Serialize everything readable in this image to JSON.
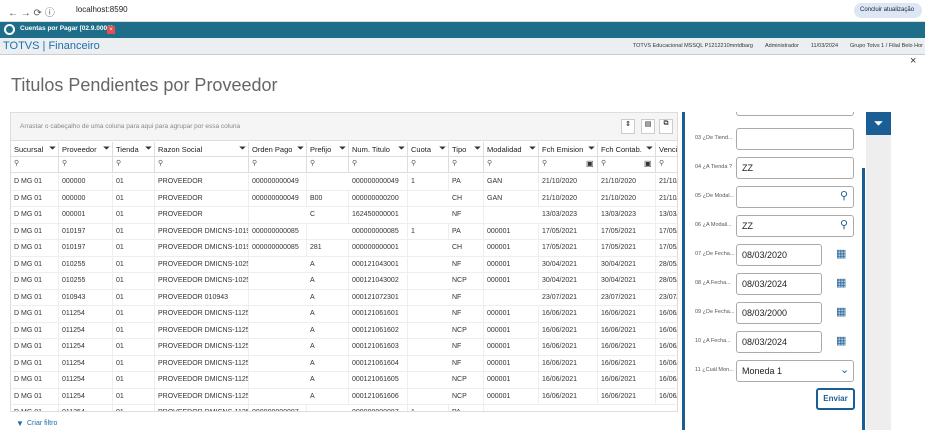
{
  "browser": {
    "url": "localhost:8590",
    "update_button": "Concluir atualização"
  },
  "tab": {
    "title": "Cuentas por Pagar [02.9.0006]"
  },
  "app": {
    "brand": "TOTVS | Financeiro",
    "status": [
      "TOTVS Educacional MSSQL P1212210mntdbarg",
      "Administrador",
      "11/03/2024",
      "Grupo Totvs 1 / Filial Belo Hor"
    ]
  },
  "page": {
    "title": "Titulos Pendientes por Proveedor"
  },
  "grid": {
    "group_hint": "Arrastar o cabeçalho de uma coluna para aqui para agrupar por essa coluna",
    "columns": [
      "Sucursal",
      "Proveedor",
      "Tienda",
      "Razon Social",
      "Orden Pago",
      "Prefijo",
      "Num. Titulo",
      "Cuota",
      "Tipo",
      "Modalidad",
      "Fch Emision",
      "Fch Contab.",
      "Vencin"
    ],
    "rows": [
      [
        "D MG 01",
        "000000",
        "01",
        "PROVEEDOR",
        "000000000049",
        null,
        "000000000049",
        "1",
        "PA",
        "GAN",
        "21/10/2020",
        "21/10/2020",
        "21/10/"
      ],
      [
        "D MG 01",
        "000000",
        "01",
        "PROVEEDOR",
        "000000000049",
        "B00",
        "000000000200",
        null,
        "CH",
        "GAN",
        "21/10/2020",
        "21/10/2020",
        "21/10/"
      ],
      [
        "D MG 01",
        "000001",
        "01",
        "PROVEEDOR",
        null,
        "C",
        "162450000001",
        null,
        "NF",
        null,
        "13/03/2023",
        "13/03/2023",
        "13/03/"
      ],
      [
        "D MG 01",
        "010197",
        "01",
        "PROVEEDOR DMICNS-10197",
        "000000000085",
        null,
        "000000000085",
        "1",
        "PA",
        "000001",
        "17/05/2021",
        "17/05/2021",
        "17/05/"
      ],
      [
        "D MG 01",
        "010197",
        "01",
        "PROVEEDOR DMICNS-10197",
        "000000000085",
        "281",
        "000000000001",
        null,
        "CH",
        "000001",
        "17/05/2021",
        "17/05/2021",
        "17/05/"
      ],
      [
        "D MG 01",
        "010255",
        "01",
        "PROVEEDOR DMICNS-10255",
        null,
        "A",
        "000121043001",
        null,
        "NF",
        "000001",
        "30/04/2021",
        "30/04/2021",
        "28/05/"
      ],
      [
        "D MG 01",
        "010255",
        "01",
        "PROVEEDOR DMICNS-10255",
        null,
        "A",
        "000121043002",
        null,
        "NCP",
        "000001",
        "30/04/2021",
        "30/04/2021",
        "28/05/"
      ],
      [
        "D MG 01",
        "010943",
        "01",
        "PROVEEDOR 010943",
        null,
        "A",
        "000121072301",
        null,
        "NF",
        null,
        "23/07/2021",
        "23/07/2021",
        "23/07/"
      ],
      [
        "D MG 01",
        "011254",
        "01",
        "PROVEEDOR DMICNS-11254",
        null,
        "A",
        "000121061601",
        null,
        "NF",
        "000001",
        "16/06/2021",
        "16/06/2021",
        "16/06/"
      ],
      [
        "D MG 01",
        "011254",
        "01",
        "PROVEEDOR DMICNS-11254",
        null,
        "A",
        "000121061602",
        null,
        "NCP",
        "000001",
        "16/06/2021",
        "16/06/2021",
        "16/06/"
      ],
      [
        "D MG 01",
        "011254",
        "01",
        "PROVEEDOR DMICNS-11254",
        null,
        "A",
        "000121061603",
        null,
        "NF",
        "000001",
        "16/06/2021",
        "16/06/2021",
        "16/06/"
      ],
      [
        "D MG 01",
        "011254",
        "01",
        "PROVEEDOR DMICNS-11254",
        null,
        "A",
        "000121061604",
        null,
        "NF",
        "000001",
        "16/06/2021",
        "16/06/2021",
        "16/06/"
      ],
      [
        "D MG 01",
        "011254",
        "01",
        "PROVEEDOR DMICNS-11254",
        null,
        "A",
        "000121061605",
        null,
        "NCP",
        "000001",
        "16/06/2021",
        "16/06/2021",
        "16/06/"
      ],
      [
        "D MG 01",
        "011254",
        "01",
        "PROVEEDOR DMICNS-11254",
        null,
        "A",
        "000121061606",
        null,
        "NCP",
        "000001",
        "16/06/2021",
        "16/06/2021",
        "16/06/"
      ],
      [
        "D MG 01",
        "011254",
        "01",
        "PROVEEDOR DMICNS-11254",
        "000000000087",
        null,
        "000000000087",
        "1",
        "PA"
      ]
    ],
    "create_filter": "Criar filtro"
  },
  "filters": {
    "fields": [
      {
        "label": "03 ¿De Tiend...",
        "value": null,
        "icon": "none"
      },
      {
        "label": "04 ¿A Tienda ?",
        "value": "ZZ",
        "icon": "none"
      },
      {
        "label": "05 ¿De Modal...",
        "value": null,
        "icon": "search"
      },
      {
        "label": "06 ¿A Modali...",
        "value": "ZZ",
        "icon": "search"
      },
      {
        "label": "07 ¿De Fecha...",
        "value": "08/03/2020",
        "icon": "calendar"
      },
      {
        "label": "08 ¿A Fecha...",
        "value": "08/03/2024",
        "icon": "calendar"
      },
      {
        "label": "09 ¿De Fecha...",
        "value": "08/03/2000",
        "icon": "calendar"
      },
      {
        "label": "10 ¿A Fecha...",
        "value": "08/03/2024",
        "icon": "calendar"
      },
      {
        "label": "11 ¿Cuál Mon...",
        "value": "Moneda 1",
        "icon": "select"
      }
    ],
    "submit": "Enviar"
  }
}
